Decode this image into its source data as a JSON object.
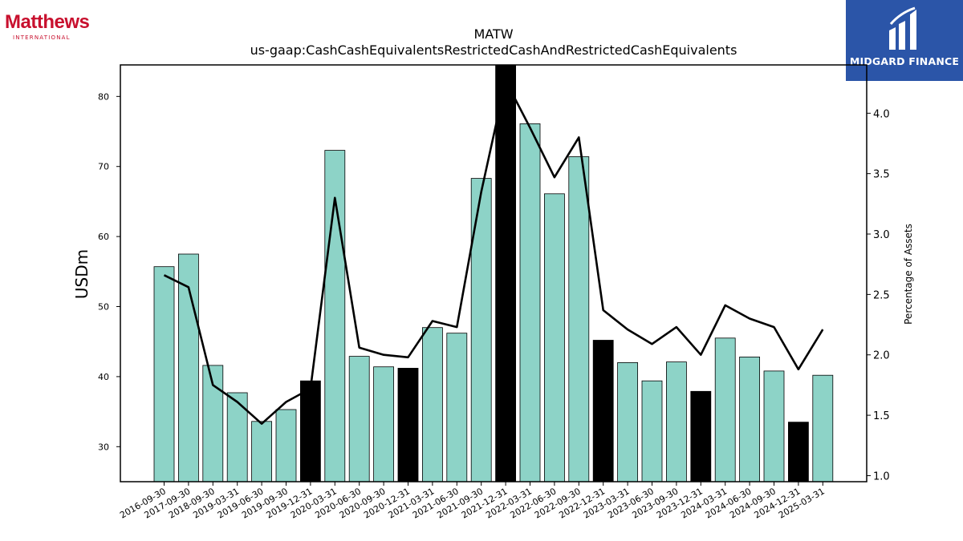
{
  "brand_left": {
    "name": "Matthews",
    "subtitle": "INTERNATIONAL"
  },
  "brand_right": {
    "name": "MIDGARD FINANCE"
  },
  "chart_data": {
    "type": "bar",
    "title": "MATW",
    "subtitle": "us-gaap:CashCashEquivalentsRestrictedCashAndRestrictedCashEquivalents",
    "ylabel": "USDm",
    "y2label": "Percentage of Assets",
    "ylim": [
      25,
      84.5
    ],
    "y2lim": [
      0.95,
      4.4
    ],
    "yticks": [
      30,
      40,
      50,
      60,
      70,
      80
    ],
    "y2ticks": [
      "1.0",
      "1.5",
      "2.0",
      "2.5",
      "3.0",
      "3.5",
      "4.0"
    ],
    "categories": [
      "2016-09-30",
      "2017-09-30",
      "2018-09-30",
      "2019-03-31",
      "2019-06-30",
      "2019-09-30",
      "2019-12-31",
      "2020-03-31",
      "2020-06-30",
      "2020-09-30",
      "2020-12-31",
      "2021-03-31",
      "2021-06-30",
      "2021-09-30",
      "2021-12-31",
      "2022-03-31",
      "2022-06-30",
      "2022-09-30",
      "2022-12-31",
      "2023-03-31",
      "2023-06-30",
      "2023-09-30",
      "2023-12-31",
      "2024-03-31",
      "2024-06-30",
      "2024-09-30",
      "2024-12-31",
      "2025-03-31"
    ],
    "values": [
      55.7,
      57.5,
      41.6,
      37.7,
      33.6,
      35.3,
      39.4,
      72.3,
      42.9,
      41.4,
      41.2,
      47.0,
      46.2,
      68.3,
      85.0,
      76.1,
      66.1,
      71.4,
      45.2,
      42.0,
      39.4,
      42.1,
      37.9,
      45.5,
      42.8,
      40.8,
      33.5,
      40.2
    ],
    "highlight": [
      false,
      false,
      false,
      false,
      false,
      false,
      true,
      false,
      false,
      false,
      true,
      false,
      false,
      false,
      true,
      false,
      false,
      false,
      true,
      false,
      false,
      false,
      true,
      false,
      false,
      false,
      true,
      false
    ],
    "line": [
      2.66,
      2.56,
      1.75,
      1.61,
      1.43,
      1.61,
      1.72,
      3.3,
      2.06,
      2.0,
      1.98,
      2.28,
      2.23,
      3.35,
      4.27,
      3.88,
      3.47,
      3.8,
      2.37,
      2.21,
      2.09,
      2.23,
      2.0,
      2.41,
      2.3,
      2.23,
      1.88,
      2.21
    ],
    "colors": {
      "bar": "#8dd3c7",
      "highlight": "#000000",
      "line": "#000000"
    },
    "grid": false
  }
}
